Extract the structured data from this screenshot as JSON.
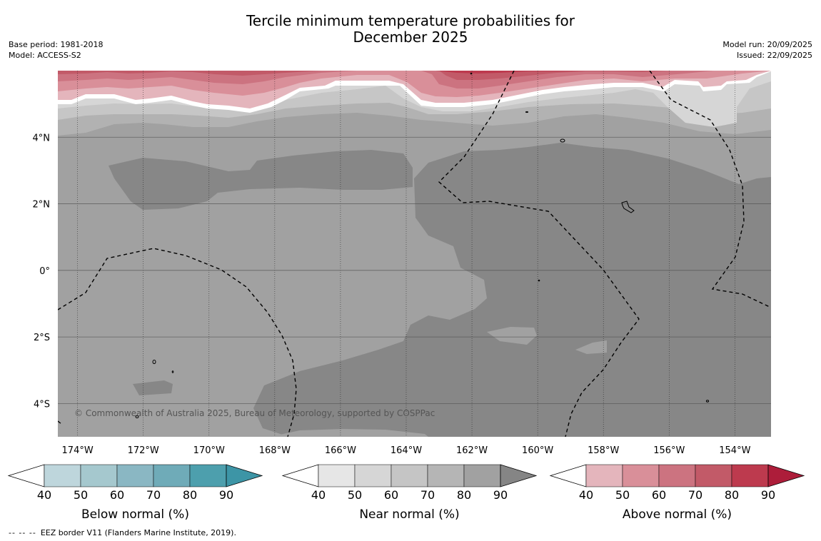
{
  "title": {
    "line1": "Tercile minimum temperature probabilities for",
    "line2": "December 2025"
  },
  "meta_left": {
    "base_period": "Base period: 1981-2018",
    "model": "Model: ACCESS-S2"
  },
  "meta_right": {
    "model_run": "Model run: 20/09/2025",
    "issued": "Issued: 22/09/2025"
  },
  "map": {
    "lon_range": [
      -174.6,
      -152.9
    ],
    "lat_range": [
      -5.0,
      6.0
    ],
    "lon_ticks": [
      {
        "value": -174,
        "label": "174°W"
      },
      {
        "value": -172,
        "label": "172°W"
      },
      {
        "value": -170,
        "label": "170°W"
      },
      {
        "value": -168,
        "label": "168°W"
      },
      {
        "value": -166,
        "label": "166°W"
      },
      {
        "value": -164,
        "label": "164°W"
      },
      {
        "value": -162,
        "label": "162°W"
      },
      {
        "value": -160,
        "label": "160°W"
      },
      {
        "value": -158,
        "label": "158°W"
      },
      {
        "value": -156,
        "label": "156°W"
      },
      {
        "value": -154,
        "label": "154°W"
      }
    ],
    "lat_ticks": [
      {
        "value": 4,
        "label": "4°N"
      },
      {
        "value": 2,
        "label": "2°N"
      },
      {
        "value": 0,
        "label": "0°"
      },
      {
        "value": -2,
        "label": "2°S"
      },
      {
        "value": -4,
        "label": "4°S"
      }
    ],
    "attribution": "© Commonwealth of Australia 2025, Bureau of Meteorology, supported by COSPPac"
  },
  "legends": [
    {
      "id": "below",
      "label": "Below normal (%)",
      "ticks": [
        "40",
        "50",
        "60",
        "70",
        "80",
        "90"
      ],
      "colors": [
        "#ffffff",
        "#bed6dc",
        "#a5c8ce",
        "#8ab7c3",
        "#6fabb8",
        "#4d9fad",
        "#3d95a6"
      ]
    },
    {
      "id": "near",
      "label": "Near normal (%)",
      "ticks": [
        "40",
        "50",
        "60",
        "70",
        "80",
        "90"
      ],
      "colors": [
        "#ffffff",
        "#e6e6e6",
        "#d6d6d6",
        "#c5c5c5",
        "#b5b5b5",
        "#a1a1a1",
        "#858585"
      ]
    },
    {
      "id": "above",
      "label": "Above normal (%)",
      "ticks": [
        "40",
        "50",
        "60",
        "70",
        "80",
        "90"
      ],
      "colors": [
        "#ffffff",
        "#e4b5bc",
        "#d98f99",
        "#cc7380",
        "#c25a68",
        "#bd3a4e",
        "#ad1d3a"
      ]
    }
  ],
  "footer": {
    "line_sample": "--  --  --",
    "text": "EEZ border V11 (Flanders Marine Institute, 2019)."
  }
}
